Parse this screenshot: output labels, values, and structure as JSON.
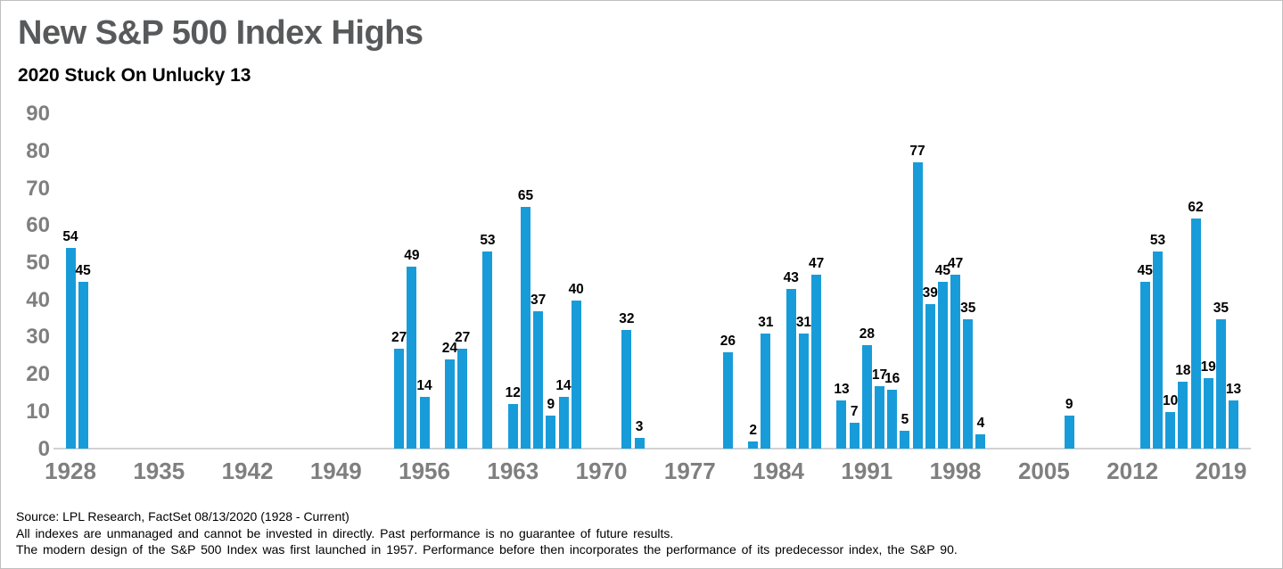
{
  "page": {
    "title": "New S&P 500 Index Highs",
    "subtitle": "2020 Stuck On Unlucky 13"
  },
  "chart_data": {
    "type": "bar",
    "title": "New S&P 500 Index Highs",
    "subtitle": "2020 Stuck On Unlucky 13",
    "xlabel": "",
    "ylabel": "",
    "ylim": [
      0,
      90
    ],
    "xlim": [
      1927,
      2021
    ],
    "grid": false,
    "legend": "none",
    "bar_color": "#189cd9",
    "x_ticks": [
      1928,
      1935,
      1942,
      1949,
      1956,
      1963,
      1970,
      1977,
      1984,
      1991,
      1998,
      2005,
      2012,
      2019
    ],
    "y_ticks": [
      0,
      10,
      20,
      30,
      40,
      50,
      60,
      70,
      80,
      90
    ],
    "points": [
      {
        "year": 1928,
        "value": 54
      },
      {
        "year": 1929,
        "value": 45
      },
      {
        "year": 1954,
        "value": 27
      },
      {
        "year": 1955,
        "value": 49
      },
      {
        "year": 1956,
        "value": 14
      },
      {
        "year": 1958,
        "value": 24
      },
      {
        "year": 1959,
        "value": 27
      },
      {
        "year": 1961,
        "value": 53
      },
      {
        "year": 1963,
        "value": 12
      },
      {
        "year": 1964,
        "value": 65
      },
      {
        "year": 1965,
        "value": 37
      },
      {
        "year": 1966,
        "value": 9
      },
      {
        "year": 1967,
        "value": 14
      },
      {
        "year": 1968,
        "value": 40
      },
      {
        "year": 1972,
        "value": 32
      },
      {
        "year": 1973,
        "value": 3
      },
      {
        "year": 1980,
        "value": 26
      },
      {
        "year": 1982,
        "value": 2
      },
      {
        "year": 1983,
        "value": 31
      },
      {
        "year": 1985,
        "value": 43
      },
      {
        "year": 1986,
        "value": 31
      },
      {
        "year": 1987,
        "value": 47
      },
      {
        "year": 1989,
        "value": 13
      },
      {
        "year": 1990,
        "value": 7
      },
      {
        "year": 1991,
        "value": 28
      },
      {
        "year": 1992,
        "value": 17
      },
      {
        "year": 1993,
        "value": 16
      },
      {
        "year": 1994,
        "value": 5
      },
      {
        "year": 1995,
        "value": 77
      },
      {
        "year": 1996,
        "value": 39
      },
      {
        "year": 1997,
        "value": 45
      },
      {
        "year": 1998,
        "value": 47
      },
      {
        "year": 1999,
        "value": 35
      },
      {
        "year": 2000,
        "value": 4
      },
      {
        "year": 2007,
        "value": 9
      },
      {
        "year": 2013,
        "value": 45
      },
      {
        "year": 2014,
        "value": 53
      },
      {
        "year": 2015,
        "value": 10
      },
      {
        "year": 2016,
        "value": 18
      },
      {
        "year": 2017,
        "value": 62
      },
      {
        "year": 2018,
        "value": 19
      },
      {
        "year": 2019,
        "value": 35
      },
      {
        "year": 2020,
        "value": 13
      }
    ]
  },
  "footer": {
    "lines": [
      "Source: LPL Research, FactSet 08/13/2020 (1928 - Current)",
      "All indexes are unmanaged and cannot be invested in directly. Past performance is no guarantee of future results.",
      "The modern design of the S&P 500 Index was first launched in 1957. Performance before then incorporates the performance of its predecessor index, the S&P 90."
    ]
  },
  "colors": {
    "title": "#58595b",
    "subtitle": "#000000",
    "axis_labels": "#7f7f7f",
    "value_labels": "#000000",
    "baseline": "#d2d2d2",
    "border": "#bfbfbf",
    "bar": "#189cd9"
  }
}
